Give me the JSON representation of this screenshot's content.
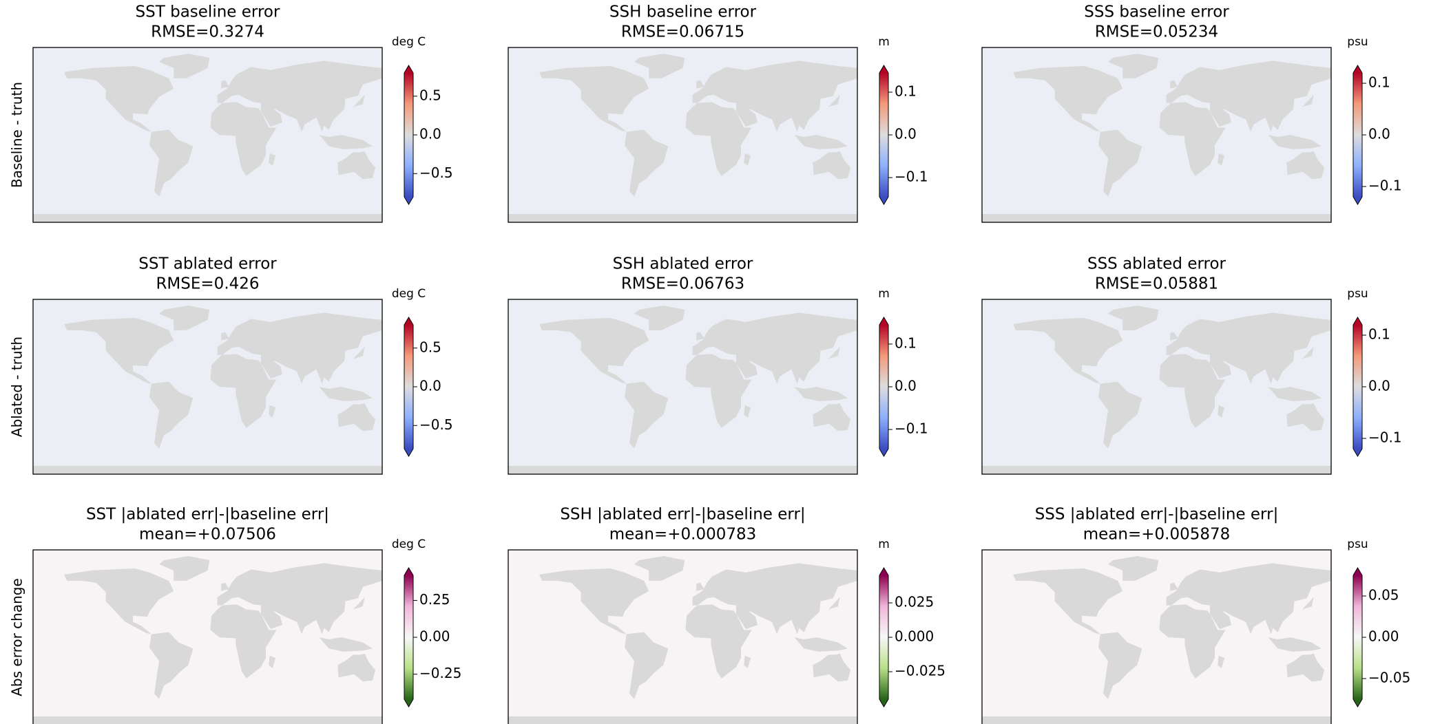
{
  "chart_data": [
    {
      "type": "heatmap",
      "title": "SST baseline error",
      "subtitle": "RMSE=0.3274",
      "ylabel": "Baseline - truth",
      "colorbar": {
        "label": "deg C",
        "cmap": "coolwarm",
        "lim": [
          -0.8,
          0.8
        ],
        "ticks": [
          0.5,
          {
            "value": 0,
            "label": "0.0"
          },
          {
            "value": -0.5,
            "label": "−0.5"
          }
        ]
      }
    },
    {
      "type": "heatmap",
      "title": "SSH baseline error",
      "subtitle": "RMSE=0.06715",
      "colorbar": {
        "label": "m",
        "cmap": "coolwarm",
        "lim": [
          -0.145,
          0.145
        ],
        "ticks": [
          0.1,
          {
            "value": 0,
            "label": "0.0"
          },
          {
            "value": -0.1,
            "label": "−0.1"
          }
        ]
      }
    },
    {
      "type": "heatmap",
      "title": "SSS baseline error",
      "subtitle": "RMSE=0.05234",
      "colorbar": {
        "label": "psu",
        "cmap": "coolwarm",
        "lim": [
          -0.12,
          0.12
        ],
        "ticks": [
          0.1,
          {
            "value": 0,
            "label": "0.0"
          },
          {
            "value": -0.1,
            "label": "−0.1"
          }
        ]
      }
    },
    {
      "type": "heatmap",
      "title": "SST ablated error",
      "subtitle": "RMSE=0.426",
      "ylabel": "Ablated - truth",
      "colorbar": {
        "label": "deg C",
        "cmap": "coolwarm",
        "lim": [
          -0.8,
          0.8
        ],
        "ticks": [
          0.5,
          {
            "value": 0,
            "label": "0.0"
          },
          {
            "value": -0.5,
            "label": "−0.5"
          }
        ]
      }
    },
    {
      "type": "heatmap",
      "title": "SSH ablated error",
      "subtitle": "RMSE=0.06763",
      "colorbar": {
        "label": "m",
        "cmap": "coolwarm",
        "lim": [
          -0.145,
          0.145
        ],
        "ticks": [
          0.1,
          {
            "value": 0,
            "label": "0.0"
          },
          {
            "value": -0.1,
            "label": "−0.1"
          }
        ]
      }
    },
    {
      "type": "heatmap",
      "title": "SSS ablated error",
      "subtitle": "RMSE=0.05881",
      "colorbar": {
        "label": "psu",
        "cmap": "coolwarm",
        "lim": [
          -0.12,
          0.12
        ],
        "ticks": [
          0.1,
          {
            "value": 0,
            "label": "0.0"
          },
          {
            "value": -0.1,
            "label": "−0.1"
          }
        ]
      }
    },
    {
      "type": "heatmap",
      "title": "SST |ablated err|-|baseline err|",
      "subtitle": "mean=+0.07506",
      "ylabel": "Abs error change",
      "colorbar": {
        "label": "deg C",
        "cmap": "PiYG_r",
        "lim": [
          -0.42,
          0.42
        ],
        "ticks": [
          0.25,
          {
            "value": 0,
            "label": "0.00"
          },
          {
            "value": -0.25,
            "label": "−0.25"
          }
        ]
      }
    },
    {
      "type": "heatmap",
      "title": "SSH |ablated err|-|baseline err|",
      "subtitle": "mean=+0.000783",
      "colorbar": {
        "label": "m",
        "cmap": "PiYG_r",
        "lim": [
          -0.045,
          0.045
        ],
        "ticks": [
          0.025,
          {
            "value": 0,
            "label": "0.000"
          },
          {
            "value": -0.025,
            "label": "−0.025"
          }
        ]
      }
    },
    {
      "type": "heatmap",
      "title": "SSS |ablated err|-|baseline err|",
      "subtitle": "mean=+0.005878",
      "colorbar": {
        "label": "psu",
        "cmap": "PiYG_r",
        "lim": [
          -0.075,
          0.075
        ],
        "ticks": [
          0.05,
          {
            "value": 0,
            "label": "0.00"
          },
          {
            "value": -0.05,
            "label": "−0.05"
          }
        ]
      }
    }
  ]
}
